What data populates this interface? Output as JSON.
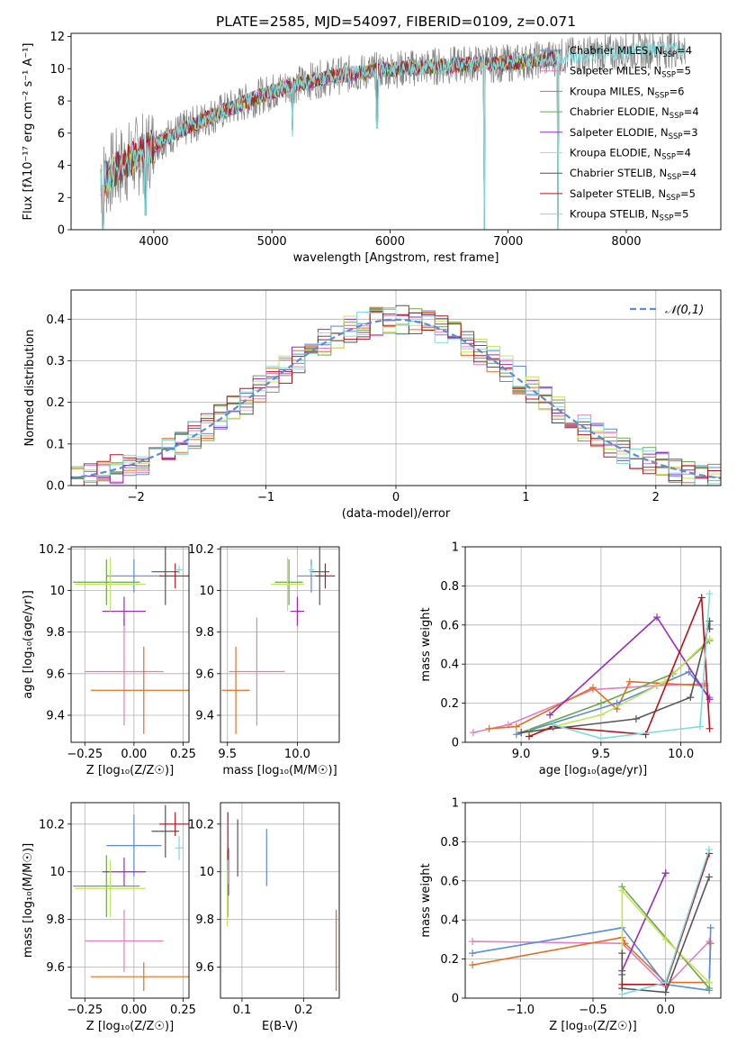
{
  "colors": {
    "chabrier_miles": "#5b8bd9",
    "salpeter_miles": "#e57dbd",
    "kroupa_miles": "#e07020",
    "chabrier_elodie": "#6aa84f",
    "salpeter_elodie": "#9a2bbd",
    "kroupa_elodie": "#c5e35b",
    "chabrier_stelib": "#555555",
    "salpeter_stelib": "#b5121b",
    "kroupa_stelib": "#7fdbdb",
    "data_gray": "#808080"
  },
  "chart_data": [
    {
      "id": "spectrum",
      "type": "line",
      "title": "PLATE=2585, MJD=54097, FIBERID=0109, z=0.071",
      "xlabel": "wavelength [Angstrom, rest frame]",
      "ylabel": "Flux [fλ10⁻¹⁷ erg cm⁻² s⁻¹ A⁻¹]",
      "xlim": [
        3300,
        8800
      ],
      "ylim": [
        0,
        12.2
      ],
      "xticks": [
        4000,
        5000,
        6000,
        7000,
        8000
      ],
      "yticks": [
        0,
        2,
        4,
        6,
        8,
        10,
        12
      ],
      "grid": false,
      "legend_position": "right",
      "legend": [
        {
          "label": "Chabrier MILES, N_SSP=4",
          "color_key": "chabrier_miles"
        },
        {
          "label": "Salpeter MILES, N_SSP=5",
          "color_key": "salpeter_miles"
        },
        {
          "label": "Kroupa MILES, N_SSP=6",
          "color_key": "kroupa_miles"
        },
        {
          "label": "Chabrier ELODIE, N_SSP=4",
          "color_key": "chabrier_elodie"
        },
        {
          "label": "Salpeter ELODIE, N_SSP=3",
          "color_key": "salpeter_elodie"
        },
        {
          "label": "Kroupa ELODIE, N_SSP=4",
          "color_key": "kroupa_elodie"
        },
        {
          "label": "Chabrier STELIB, N_SSP=4",
          "color_key": "chabrier_stelib"
        },
        {
          "label": "Salpeter STELIB, N_SSP=5",
          "color_key": "salpeter_stelib"
        },
        {
          "label": "Kroupa STELIB, N_SSP=5",
          "color_key": "kroupa_stelib"
        }
      ],
      "continuum": {
        "x": [
          3550,
          3650,
          3800,
          3950,
          4100,
          4300,
          4500,
          4700,
          4900,
          5100,
          5300,
          5500,
          5700,
          5900,
          6100,
          6300,
          6500,
          6700,
          6900,
          7100,
          7300,
          7500,
          7700,
          7900,
          8100,
          8300,
          8500
        ],
        "y": [
          3.0,
          3.6,
          4.3,
          5.0,
          5.7,
          6.4,
          7.1,
          7.7,
          8.3,
          8.8,
          9.2,
          9.5,
          9.7,
          9.9,
          10.0,
          10.1,
          10.2,
          10.3,
          10.3,
          10.4,
          10.6,
          10.8,
          10.9,
          11.0,
          11.1,
          11.2,
          11.2
        ]
      },
      "model_x_range": [
        3550,
        7450
      ],
      "kroupa_stelib_x_range": [
        3550,
        8500
      ],
      "dips": [
        {
          "x": 3570,
          "y": 0.0
        },
        {
          "x": 3930,
          "y": 0.9
        },
        {
          "x": 5175,
          "y": 5.8
        },
        {
          "x": 5890,
          "y": 6.3
        },
        {
          "x": 6800,
          "y": 0.0
        },
        {
          "x": 7420,
          "y": 0.0
        }
      ]
    },
    {
      "id": "residual_hist",
      "type": "step",
      "xlabel": "(data-model)/error",
      "ylabel": "Normed distribution",
      "xlim": [
        -2.5,
        2.5
      ],
      "ylim": [
        0,
        0.47
      ],
      "xticks": [
        -2,
        -1,
        0,
        1,
        2
      ],
      "yticks": [
        0,
        0.1,
        0.2,
        0.3,
        0.4
      ],
      "grid": true,
      "bin_width": 0.1,
      "legend_position": "top-right",
      "gaussian_label": "𝒩(0,1)",
      "gaussian_color": "#5b8bd9"
    },
    {
      "id": "age_vs_z",
      "type": "errorbar",
      "xlabel": "Z [log₁₀(Z/Z☉)]",
      "ylabel": "age  [log₁₀(age/yr)]",
      "xlim": [
        -0.32,
        0.28
      ],
      "ylim": [
        9.27,
        10.21
      ],
      "xticks": [
        -0.25,
        0.0,
        0.25
      ],
      "xtick_labels": [
        "−0.25",
        "0.00",
        "0.25"
      ],
      "yticks": [
        9.4,
        9.6,
        9.8,
        10.0,
        10.2
      ],
      "grid": true,
      "points": [
        {
          "key": "chabrier_miles",
          "x": 0.0,
          "xerr": 0.14,
          "y": 10.07,
          "yerr": 0.08
        },
        {
          "key": "salpeter_miles",
          "x": -0.05,
          "xerr": 0.2,
          "y": 9.61,
          "yerr": 0.26
        },
        {
          "key": "kroupa_miles",
          "x": 0.05,
          "xerr": 0.27,
          "y": 9.52,
          "yerr": 0.21
        },
        {
          "key": "chabrier_elodie",
          "x": -0.14,
          "xerr": 0.17,
          "y": 10.04,
          "yerr": 0.11
        },
        {
          "key": "salpeter_elodie",
          "x": -0.05,
          "xerr": 0.11,
          "y": 9.9,
          "yerr": 0.07
        },
        {
          "key": "kroupa_elodie",
          "x": -0.12,
          "xerr": 0.18,
          "y": 10.03,
          "yerr": 0.13
        },
        {
          "key": "chabrier_stelib",
          "x": 0.16,
          "xerr": 0.07,
          "y": 10.09,
          "yerr": 0.16
        },
        {
          "key": "salpeter_stelib",
          "x": 0.21,
          "xerr": 0.08,
          "y": 10.07,
          "yerr": 0.06
        },
        {
          "key": "kroupa_stelib",
          "x": 0.23,
          "xerr": 0.02,
          "y": 10.1,
          "yerr": 0.02
        }
      ]
    },
    {
      "id": "age_vs_mass",
      "type": "errorbar",
      "xlabel": "mass [log₁₀(M/M☉)]",
      "ylabel": "",
      "xlim": [
        9.45,
        10.3
      ],
      "ylim": [
        9.27,
        10.21
      ],
      "xticks": [
        9.5,
        10.0
      ],
      "xtick_labels": [
        "9.5",
        "10.0"
      ],
      "yticks": [
        9.4,
        9.6,
        9.8,
        10.0,
        10.2
      ],
      "grid": true,
      "points": [
        {
          "key": "chabrier_miles",
          "x": 10.1,
          "xerr": 0.1,
          "y": 10.07,
          "yerr": 0.08
        },
        {
          "key": "salpeter_miles",
          "x": 9.71,
          "xerr": 0.2,
          "y": 9.61,
          "yerr": 0.26
        },
        {
          "key": "kroupa_miles",
          "x": 9.56,
          "xerr": 0.1,
          "y": 9.52,
          "yerr": 0.21
        },
        {
          "key": "chabrier_elodie",
          "x": 9.94,
          "xerr": 0.1,
          "y": 10.04,
          "yerr": 0.11
        },
        {
          "key": "salpeter_elodie",
          "x": 10.0,
          "xerr": 0.05,
          "y": 9.9,
          "yerr": 0.07
        },
        {
          "key": "kroupa_elodie",
          "x": 9.93,
          "xerr": 0.12,
          "y": 10.03,
          "yerr": 0.13
        },
        {
          "key": "chabrier_stelib",
          "x": 10.16,
          "xerr": 0.07,
          "y": 10.09,
          "yerr": 0.16
        },
        {
          "key": "salpeter_stelib",
          "x": 10.2,
          "xerr": 0.07,
          "y": 10.07,
          "yerr": 0.06
        },
        {
          "key": "kroupa_stelib",
          "x": 10.1,
          "xerr": 0.02,
          "y": 10.1,
          "yerr": 0.02
        }
      ]
    },
    {
      "id": "massweight_vs_age",
      "type": "line",
      "xlabel": "age  [log₁₀(age/yr)]",
      "ylabel": "mass weight",
      "xlim": [
        8.65,
        10.25
      ],
      "ylim": [
        0,
        1.0
      ],
      "xticks": [
        9.0,
        9.5,
        10.0
      ],
      "xtick_labels": [
        "9.0",
        "9.5",
        "10.0"
      ],
      "yticks": [
        0.0,
        0.2,
        0.4,
        0.6,
        0.8,
        1.0
      ],
      "grid": true,
      "series": [
        {
          "key": "salpeter_miles",
          "x": [
            8.7,
            8.92,
            9.45,
            9.85,
            10.15
          ],
          "y": [
            0.05,
            0.09,
            0.27,
            0.29,
            0.3
          ]
        },
        {
          "key": "kroupa_miles",
          "x": [
            8.8,
            8.97,
            9.45,
            9.6,
            9.68,
            10.15
          ],
          "y": [
            0.07,
            0.08,
            0.28,
            0.17,
            0.31,
            0.29
          ]
        },
        {
          "key": "chabrier_miles",
          "x": [
            8.97,
            9.6,
            10.05,
            10.18
          ],
          "y": [
            0.04,
            0.2,
            0.36,
            0.23
          ]
        },
        {
          "key": "salpeter_elodie",
          "x": [
            9.18,
            9.85,
            10.18
          ],
          "y": [
            0.14,
            0.64,
            0.22
          ]
        },
        {
          "key": "chabrier_elodie",
          "x": [
            9.0,
            9.5,
            9.95,
            10.18
          ],
          "y": [
            0.05,
            0.2,
            0.35,
            0.52
          ]
        },
        {
          "key": "kroupa_elodie",
          "x": [
            9.05,
            9.5,
            9.9,
            10.18
          ],
          "y": [
            0.05,
            0.14,
            0.31,
            0.53
          ]
        },
        {
          "key": "chabrier_stelib",
          "x": [
            9.0,
            9.72,
            10.06,
            10.18,
            10.18
          ],
          "y": [
            0.05,
            0.12,
            0.23,
            0.62,
            0.58
          ]
        },
        {
          "key": "salpeter_stelib",
          "x": [
            9.05,
            9.2,
            9.78,
            10.13,
            10.18
          ],
          "y": [
            0.03,
            0.08,
            0.04,
            0.74,
            0.07
          ]
        },
        {
          "key": "kroupa_stelib",
          "x": [
            9.2,
            9.5,
            10.12,
            10.18
          ],
          "y": [
            0.09,
            0.02,
            0.08,
            0.76
          ]
        }
      ]
    },
    {
      "id": "mass_vs_z",
      "type": "errorbar",
      "xlabel": "Z [log₁₀(Z/Z☉)]",
      "ylabel": "mass [log₁₀(M/M☉)]",
      "xlim": [
        -0.32,
        0.28
      ],
      "ylim": [
        9.47,
        10.29
      ],
      "xticks": [
        -0.25,
        0.0,
        0.25
      ],
      "xtick_labels": [
        "−0.25",
        "0.00",
        "0.25"
      ],
      "yticks": [
        9.6,
        9.8,
        10.0,
        10.2
      ],
      "grid": true,
      "points": [
        {
          "key": "chabrier_miles",
          "x": 0.0,
          "xerr": 0.14,
          "y": 10.11,
          "yerr": 0.13
        },
        {
          "key": "salpeter_miles",
          "x": -0.05,
          "xerr": 0.2,
          "y": 9.71,
          "yerr": 0.13
        },
        {
          "key": "kroupa_miles",
          "x": 0.05,
          "xerr": 0.27,
          "y": 9.56,
          "yerr": 0.06
        },
        {
          "key": "chabrier_elodie",
          "x": -0.14,
          "xerr": 0.17,
          "y": 9.94,
          "yerr": 0.13
        },
        {
          "key": "salpeter_elodie",
          "x": -0.05,
          "xerr": 0.11,
          "y": 10.0,
          "yerr": 0.06
        },
        {
          "key": "kroupa_elodie",
          "x": -0.12,
          "xerr": 0.18,
          "y": 9.93,
          "yerr": 0.12
        },
        {
          "key": "chabrier_stelib",
          "x": 0.16,
          "xerr": 0.07,
          "y": 10.17,
          "yerr": 0.11
        },
        {
          "key": "salpeter_stelib",
          "x": 0.21,
          "xerr": 0.08,
          "y": 10.2,
          "yerr": 0.05
        },
        {
          "key": "kroupa_stelib",
          "x": 0.23,
          "xerr": 0.02,
          "y": 10.1,
          "yerr": 0.05
        }
      ]
    },
    {
      "id": "mass_vs_ebv",
      "type": "errorbar",
      "xlabel": "E(B-V)",
      "ylabel": "",
      "xlim": [
        0.065,
        0.258
      ],
      "ylim": [
        9.47,
        10.29
      ],
      "xticks": [
        0.1,
        0.2
      ],
      "xtick_labels": [
        "0.1",
        "0.2"
      ],
      "yticks": [
        9.6,
        9.8,
        10.0,
        10.2
      ],
      "grid": true,
      "points": [
        {
          "key": "chabrier_miles",
          "x": 0.14,
          "xerr": 0,
          "y": 10.06,
          "yerr": 0.12
        },
        {
          "key": "salpeter_miles",
          "x": 0.253,
          "xerr": 0,
          "y": 9.71,
          "yerr": 0.13
        },
        {
          "key": "kroupa_miles",
          "x": 0.253,
          "xerr": 0,
          "y": 9.67,
          "yerr": 0.17
        },
        {
          "key": "chabrier_elodie",
          "x": 0.077,
          "xerr": 0,
          "y": 9.94,
          "yerr": 0.13
        },
        {
          "key": "salpeter_elodie",
          "x": 0.078,
          "xerr": 0,
          "y": 10.0,
          "yerr": 0.1
        },
        {
          "key": "kroupa_elodie",
          "x": 0.076,
          "xerr": 0,
          "y": 9.93,
          "yerr": 0.16
        },
        {
          "key": "chabrier_stelib",
          "x": 0.093,
          "xerr": 0,
          "y": 10.1,
          "yerr": 0.12
        },
        {
          "key": "salpeter_stelib",
          "x": 0.077,
          "xerr": 0,
          "y": 10.13,
          "yerr": 0.12
        },
        {
          "key": "kroupa_stelib",
          "x": 0.077,
          "xerr": 0,
          "y": 10.0,
          "yerr": 0.05
        }
      ]
    },
    {
      "id": "massweight_vs_z",
      "type": "line",
      "xlabel": "Z [log₁₀(Z/Z☉)]",
      "ylabel": "mass weight",
      "xlim": [
        -1.38,
        0.38
      ],
      "ylim": [
        0,
        1.0
      ],
      "xticks": [
        -1.0,
        -0.5,
        0.0
      ],
      "xtick_labels": [
        "−1.0",
        "−0.5",
        "0.0"
      ],
      "yticks": [
        0.0,
        0.2,
        0.4,
        0.6,
        0.8,
        1.0
      ],
      "grid": true,
      "series": [
        {
          "key": "salpeter_miles",
          "x": [
            -1.33,
            -0.3,
            0.0,
            0.3
          ],
          "y": [
            0.29,
            0.28,
            0.06,
            0.29
          ]
        },
        {
          "key": "kroupa_miles",
          "x": [
            -1.33,
            -0.3,
            -0.28,
            0.0,
            0.3,
            0.31
          ],
          "y": [
            0.17,
            0.31,
            0.28,
            0.08,
            0.08,
            0.28
          ]
        },
        {
          "key": "chabrier_miles",
          "x": [
            -1.33,
            -0.3,
            0.0,
            0.3,
            0.31
          ],
          "y": [
            0.23,
            0.36,
            0.07,
            0.04,
            0.36
          ]
        },
        {
          "key": "salpeter_elodie",
          "x": [
            -0.3,
            0.0,
            0.0
          ],
          "y": [
            0.14,
            0.64,
            0.64
          ]
        },
        {
          "key": "chabrier_elodie",
          "x": [
            -0.3,
            -0.3,
            0.3
          ],
          "y": [
            0.05,
            0.57,
            0.05
          ]
        },
        {
          "key": "kroupa_elodie",
          "x": [
            -0.3,
            -0.3,
            0.0,
            0.3
          ],
          "y": [
            0.05,
            0.55,
            0.3,
            0.08
          ]
        },
        {
          "key": "chabrier_stelib",
          "x": [
            -0.3,
            -0.3,
            -0.3,
            0.0,
            0.3
          ],
          "y": [
            0.12,
            0.23,
            0.05,
            0.03,
            0.62
          ]
        },
        {
          "key": "salpeter_stelib",
          "x": [
            -0.3,
            0.0,
            0.3
          ],
          "y": [
            0.07,
            0.07,
            0.74
          ]
        },
        {
          "key": "kroupa_stelib",
          "x": [
            -0.3,
            0.0,
            0.3
          ],
          "y": [
            0.02,
            0.08,
            0.76
          ]
        }
      ]
    }
  ]
}
